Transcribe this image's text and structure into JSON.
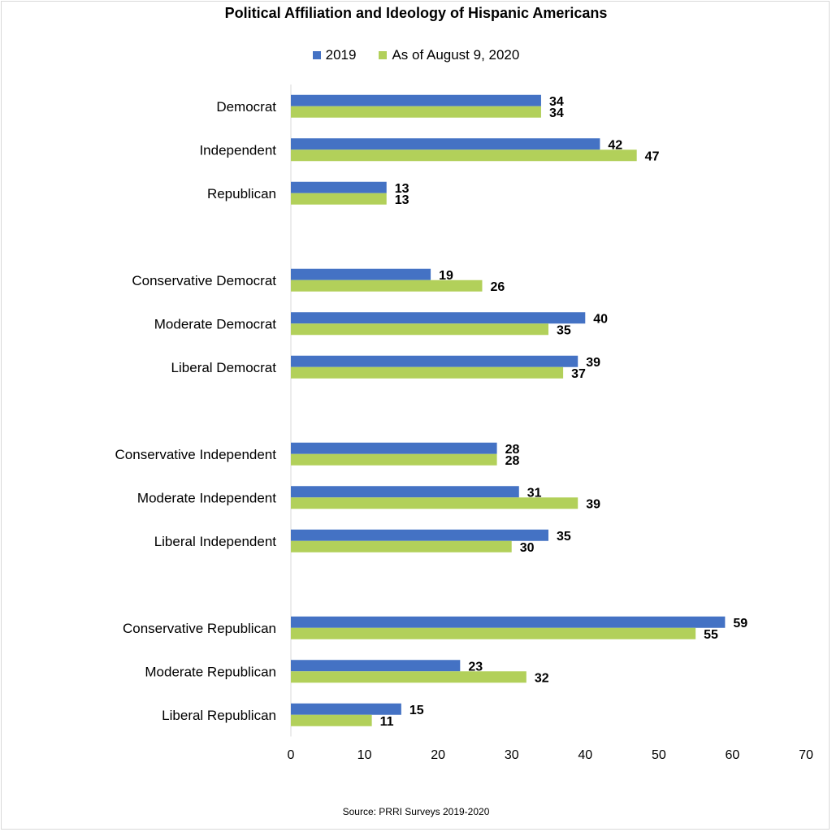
{
  "chart_data": {
    "type": "bar",
    "orientation": "horizontal",
    "title": "Political Affiliation and Ideology of Hispanic Americans",
    "source": "Source: PRRI Surveys 2019-2020",
    "categories": [
      "Democrat",
      "Independent",
      "Republican",
      "",
      "Conservative Democrat",
      "Moderate Democrat",
      "Liberal Democrat",
      "",
      "Conservative Independent",
      "Moderate Independent",
      "Liberal Independent",
      "",
      "Conservative Republican",
      "Moderate Republican",
      "Liberal Republican"
    ],
    "series": [
      {
        "name": "2019",
        "color": "#4472C4",
        "values": [
          34,
          42,
          13,
          null,
          19,
          40,
          39,
          null,
          28,
          31,
          35,
          null,
          59,
          23,
          15
        ]
      },
      {
        "name": "As of August 9, 2020",
        "color": "#B2D05A",
        "values": [
          34,
          47,
          13,
          null,
          26,
          35,
          37,
          null,
          28,
          39,
          30,
          null,
          55,
          32,
          11
        ]
      }
    ],
    "xlim": [
      0,
      70
    ],
    "xticks": [
      0,
      10,
      20,
      30,
      40,
      50,
      60,
      70
    ],
    "grid": false,
    "legend_position": "top",
    "data_labels": true
  }
}
